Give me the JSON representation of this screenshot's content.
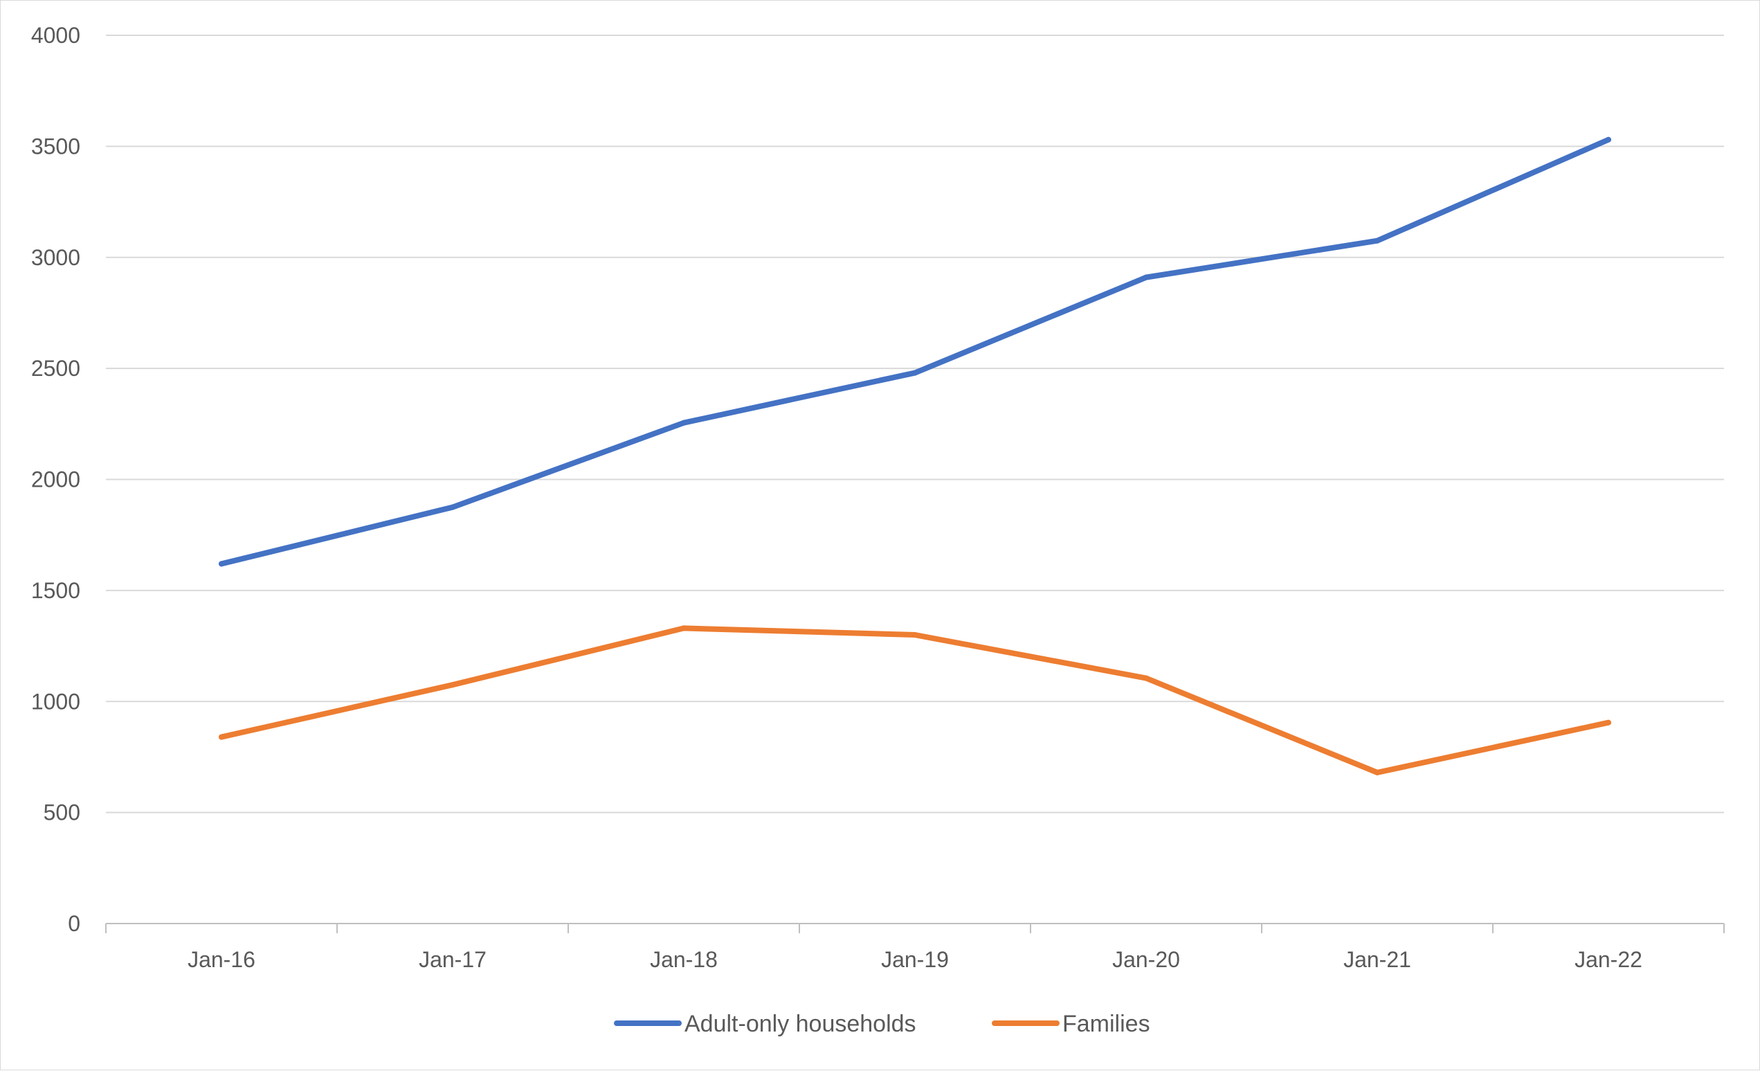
{
  "chart_data": {
    "type": "line",
    "title": "",
    "xlabel": "",
    "ylabel": "",
    "categories": [
      "Jan-16",
      "Jan-17",
      "Jan-18",
      "Jan-19",
      "Jan-20",
      "Jan-21",
      "Jan-22"
    ],
    "series": [
      {
        "name": "Adult-only households",
        "color": "#4472C4",
        "values": [
          1620,
          1875,
          2255,
          2480,
          2910,
          3075,
          3530
        ]
      },
      {
        "name": "Families",
        "color": "#ED7D31",
        "values": [
          840,
          1075,
          1330,
          1300,
          1105,
          680,
          905
        ]
      }
    ],
    "ylim": [
      0,
      4000
    ],
    "yticks": [
      0,
      500,
      1000,
      1500,
      2000,
      2500,
      3000,
      3500,
      4000
    ],
    "grid": true,
    "legend_position": "bottom"
  }
}
